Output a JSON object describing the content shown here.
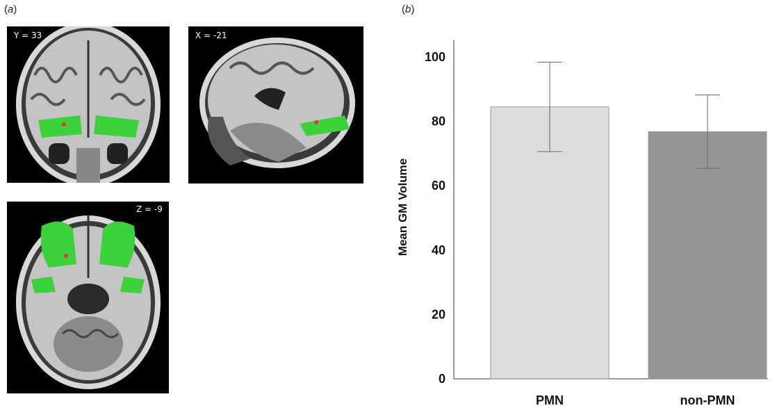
{
  "panel_a": {
    "label": "(a)",
    "views": [
      {
        "coord": "Y = 33"
      },
      {
        "coord": "X = -21"
      },
      {
        "coord": "Z = -9"
      }
    ]
  },
  "panel_b": {
    "label": "(b)"
  },
  "colors": {
    "roi": "#3cd23c",
    "peak": "#e8333a",
    "bar_pmn": "#dcdcdc",
    "bar_nonpmn": "#969696"
  },
  "chart_data": {
    "type": "bar",
    "categories": [
      "PMN",
      "non-PMN"
    ],
    "values": [
      84.5,
      76.8
    ],
    "error": [
      13.9,
      11.4
    ],
    "ylabel": "Mean GM Volume",
    "yticks": [
      "0",
      "20",
      "40",
      "60",
      "80",
      "100"
    ],
    "ylim": [
      0,
      108
    ],
    "colors": [
      "#dcdcdc",
      "#969696"
    ],
    "grid": false
  }
}
